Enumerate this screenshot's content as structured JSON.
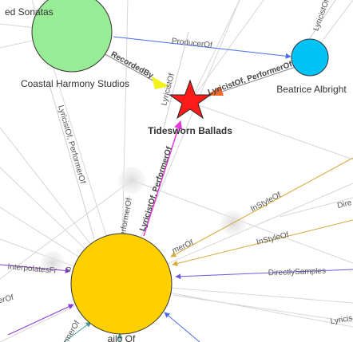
{
  "nodes": {
    "top_left": {
      "label": "ed Sonatas"
    },
    "studio": {
      "label": "Coastal Harmony Studios",
      "color": "#98ec96"
    },
    "beatrice": {
      "label": "Beatrice Albright",
      "color": "#00c3f5"
    },
    "focus": {
      "label": "Tidesworn Ballads",
      "color": "#ff1a1a"
    },
    "hub": {
      "color": "#ffcf00"
    }
  },
  "edges": {
    "producer_of": "ProducerOf",
    "recorded_by": "RecordedBy",
    "lyricist_of_top_right": "LyricistOf",
    "lyricist_performer_bea": "LyricistOf, PerformerOf",
    "lyricist_of_mid": "LyricistOf",
    "lyricist_performer_left": "LyricistOf, PerformerOf",
    "lyricist_performer_hub": "LyricistOf, PerformerOf",
    "performer_of_short": "PerformerOf",
    "in_style_of_1": "InStyleOf",
    "in_style_of_2": "InStyleOf",
    "directly_samples": "DirectlySamples",
    "interpolates": "InterpolatesFr",
    "dire": "Dire",
    "lyricis_bottom": "Lyricis",
    "performer_left": "erOf",
    "performer_right": "merOf",
    "performer_bottom": "rmerOf",
    "bottom_fragment": "ailo Of"
  },
  "colors": {
    "producer_edge": "#4a6cf0",
    "recorded_arrow": "#f2f21a",
    "lyric_arrow": "#f06a30",
    "magenta_edge": "#e23ad8",
    "gold_edge": "#d8a83a",
    "blue_purple_edge": "#6a5adf",
    "purple_edge": "#8a3ad8",
    "teal_edge": "#4a9a9a"
  }
}
